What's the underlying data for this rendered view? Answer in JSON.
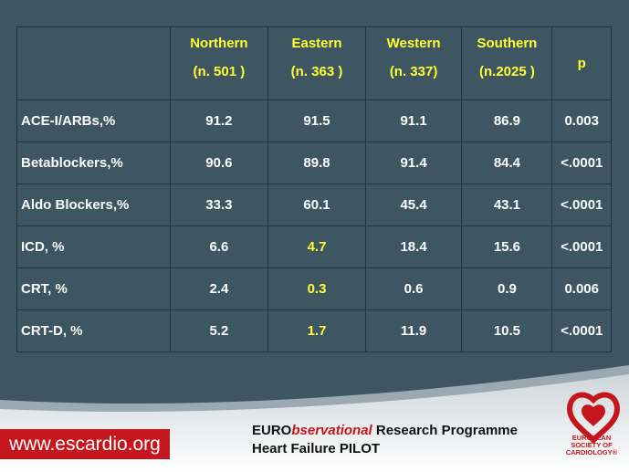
{
  "table": {
    "headers": [
      {
        "label": "Northern",
        "sub": "(n. 501 )"
      },
      {
        "label": "Eastern",
        "sub": "(n. 363 )"
      },
      {
        "label": "Western",
        "sub": "(n. 337)"
      },
      {
        "label": "Southern",
        "sub": "(n.2025 )"
      },
      {
        "label": "p"
      }
    ],
    "highlight_color": "#ffff33",
    "rows": [
      {
        "label": "ACE-I/ARBs,%",
        "cells": [
          "91.2",
          "91.5",
          "91.1",
          "86.9",
          "0.003"
        ]
      },
      {
        "label": "Betablockers,%",
        "cells": [
          "90.6",
          "89.8",
          "91.4",
          "84.4",
          "<.0001"
        ]
      },
      {
        "label": "Aldo Blockers,%",
        "cells": [
          "33.3",
          "60.1",
          "45.4",
          "43.1",
          "<.0001"
        ]
      },
      {
        "label": "ICD, %",
        "cells": [
          "6.6",
          "4.7",
          "18.4",
          "15.6",
          "<.0001"
        ],
        "highlight": [
          1
        ]
      },
      {
        "label": "CRT, %",
        "cells": [
          "2.4",
          "0.3",
          "0.6",
          "0.9",
          "0.006"
        ],
        "highlight": [
          1
        ]
      },
      {
        "label": "CRT-D, %",
        "cells": [
          "5.2",
          "1.7",
          "11.9",
          "10.5",
          "<.0001"
        ],
        "highlight": [
          1
        ]
      }
    ]
  },
  "footer": {
    "url": "www.escardio.org",
    "programme_a": "EURO",
    "programme_b": "bservational",
    "programme_c": " Research Programme",
    "subtitle": "Heart Failure PILOT",
    "logo": [
      "EUROPEAN",
      "SOCIETY OF",
      "CARDIOLOGY®"
    ]
  }
}
